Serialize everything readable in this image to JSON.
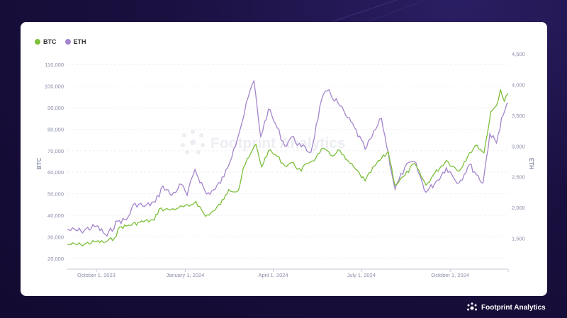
{
  "legend": [
    {
      "name": "BTC",
      "color": "#7cbf3b"
    },
    {
      "name": "ETH",
      "color": "#a384cc"
    }
  ],
  "watermark": "Footprint Analytics",
  "brand": {
    "name": "Footprint Analytics",
    "icon": "footprint-logo-icon"
  },
  "chart_data": {
    "type": "line",
    "x_range": [
      "2023-09-01",
      "2024-11-30"
    ],
    "x_ticks": [
      {
        "date": "2023-10-01",
        "label": "October 1, 2023"
      },
      {
        "date": "2024-01-01",
        "label": "January 1, 2024"
      },
      {
        "date": "2024-04-01",
        "label": "April 1, 2024"
      },
      {
        "date": "2024-07-01",
        "label": "July 1, 2024"
      },
      {
        "date": "2024-10-01",
        "label": "October 1, 2024"
      }
    ],
    "y_left": {
      "label": "BTC",
      "min": 15000,
      "max": 115000,
      "ticks": [
        20000,
        30000,
        40000,
        50000,
        60000,
        70000,
        80000,
        90000,
        100000,
        110000
      ],
      "tick_labels": [
        "20,000",
        "30,000",
        "40,000",
        "50,000",
        "60,000",
        "70,000",
        "80,000",
        "90,000",
        "100,000",
        "110,000"
      ]
    },
    "y_right": {
      "label": "ETH",
      "min": 1000,
      "max": 4500,
      "ticks": [
        1500,
        2000,
        2500,
        3000,
        3500,
        4000,
        4500
      ],
      "tick_labels": [
        "1,500",
        "2,000",
        "2,500",
        "3,000",
        "3,500",
        "4,000",
        "4,500"
      ]
    },
    "grid": true,
    "legend_position": "top-left",
    "series": [
      {
        "name": "BTC",
        "axis": "left",
        "color": "#7cbf3b",
        "points": [
          [
            "2023-09-01",
            26500
          ],
          [
            "2023-09-15",
            26400
          ],
          [
            "2023-10-01",
            27800
          ],
          [
            "2023-10-10",
            27500
          ],
          [
            "2023-10-20",
            29500
          ],
          [
            "2023-10-25",
            34500
          ],
          [
            "2023-11-01",
            35000
          ],
          [
            "2023-11-15",
            36800
          ],
          [
            "2023-11-30",
            37800
          ],
          [
            "2023-12-05",
            43000
          ],
          [
            "2023-12-15",
            42500
          ],
          [
            "2023-12-25",
            43500
          ],
          [
            "2024-01-05",
            44200
          ],
          [
            "2024-01-12",
            46500
          ],
          [
            "2024-01-22",
            39500
          ],
          [
            "2024-02-01",
            42500
          ],
          [
            "2024-02-10",
            47500
          ],
          [
            "2024-02-15",
            52000
          ],
          [
            "2024-02-25",
            51500
          ],
          [
            "2024-03-01",
            62000
          ],
          [
            "2024-03-07",
            67000
          ],
          [
            "2024-03-14",
            73000
          ],
          [
            "2024-03-20",
            62500
          ],
          [
            "2024-03-27",
            70000
          ],
          [
            "2024-04-05",
            67500
          ],
          [
            "2024-04-13",
            63000
          ],
          [
            "2024-04-20",
            64500
          ],
          [
            "2024-04-30",
            60500
          ],
          [
            "2024-05-05",
            64000
          ],
          [
            "2024-05-15",
            66500
          ],
          [
            "2024-05-21",
            71000
          ],
          [
            "2024-06-01",
            67500
          ],
          [
            "2024-06-07",
            70500
          ],
          [
            "2024-06-15",
            66000
          ],
          [
            "2024-06-25",
            61500
          ],
          [
            "2024-07-05",
            56000
          ],
          [
            "2024-07-15",
            63000
          ],
          [
            "2024-07-29",
            69500
          ],
          [
            "2024-08-05",
            54000
          ],
          [
            "2024-08-15",
            58500
          ],
          [
            "2024-08-25",
            64000
          ],
          [
            "2024-09-06",
            54000
          ],
          [
            "2024-09-15",
            59500
          ],
          [
            "2024-09-27",
            65500
          ],
          [
            "2024-10-10",
            60500
          ],
          [
            "2024-10-21",
            69000
          ],
          [
            "2024-10-29",
            72500
          ],
          [
            "2024-11-05",
            69000
          ],
          [
            "2024-11-12",
            88000
          ],
          [
            "2024-11-18",
            91000
          ],
          [
            "2024-11-22",
            98500
          ],
          [
            "2024-11-26",
            93000
          ],
          [
            "2024-11-30",
            96500
          ]
        ]
      },
      {
        "name": "ETH",
        "axis": "right",
        "color": "#a384cc",
        "points": [
          [
            "2023-09-01",
            1640
          ],
          [
            "2023-09-15",
            1620
          ],
          [
            "2023-10-01",
            1700
          ],
          [
            "2023-10-12",
            1540
          ],
          [
            "2023-10-23",
            1780
          ],
          [
            "2023-11-01",
            1800
          ],
          [
            "2023-11-10",
            2070
          ],
          [
            "2023-11-20",
            2020
          ],
          [
            "2023-12-01",
            2090
          ],
          [
            "2023-12-09",
            2350
          ],
          [
            "2023-12-18",
            2200
          ],
          [
            "2023-12-28",
            2380
          ],
          [
            "2024-01-03",
            2200
          ],
          [
            "2024-01-11",
            2620
          ],
          [
            "2024-01-23",
            2220
          ],
          [
            "2024-02-01",
            2300
          ],
          [
            "2024-02-10",
            2500
          ],
          [
            "2024-02-20",
            2950
          ],
          [
            "2024-02-29",
            3400
          ],
          [
            "2024-03-08",
            3900
          ],
          [
            "2024-03-12",
            4060
          ],
          [
            "2024-03-19",
            3150
          ],
          [
            "2024-03-27",
            3600
          ],
          [
            "2024-04-05",
            3300
          ],
          [
            "2024-04-13",
            3000
          ],
          [
            "2024-04-20",
            3150
          ],
          [
            "2024-04-30",
            2990
          ],
          [
            "2024-05-10",
            2900
          ],
          [
            "2024-05-21",
            3750
          ],
          [
            "2024-05-27",
            3900
          ],
          [
            "2024-06-07",
            3700
          ],
          [
            "2024-06-15",
            3500
          ],
          [
            "2024-06-24",
            3300
          ],
          [
            "2024-07-05",
            2950
          ],
          [
            "2024-07-12",
            3150
          ],
          [
            "2024-07-22",
            3450
          ],
          [
            "2024-08-05",
            2300
          ],
          [
            "2024-08-15",
            2650
          ],
          [
            "2024-08-25",
            2750
          ],
          [
            "2024-09-06",
            2250
          ],
          [
            "2024-09-18",
            2450
          ],
          [
            "2024-09-27",
            2650
          ],
          [
            "2024-10-10",
            2400
          ],
          [
            "2024-10-21",
            2700
          ],
          [
            "2024-11-04",
            2400
          ],
          [
            "2024-11-11",
            3200
          ],
          [
            "2024-11-18",
            3050
          ],
          [
            "2024-11-23",
            3450
          ],
          [
            "2024-11-27",
            3600
          ],
          [
            "2024-11-30",
            3700
          ]
        ]
      }
    ]
  }
}
